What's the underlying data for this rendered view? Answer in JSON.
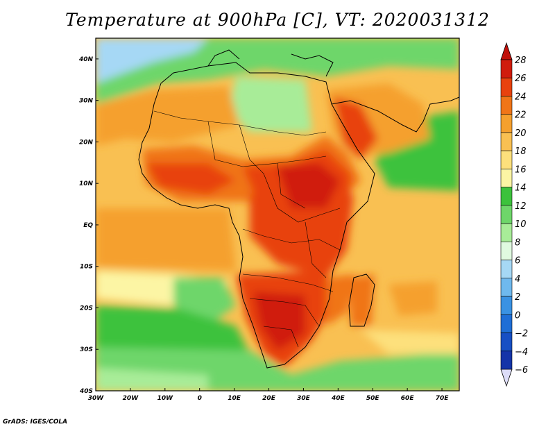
{
  "title": "Temperature at 900hPa [C], VT: 2020031312",
  "credit": "GrADS: IGES/COLA",
  "map": {
    "type": "filled-contour",
    "region": {
      "lon_range": [
        -30,
        75
      ],
      "lat_range": [
        -40,
        45
      ]
    },
    "lat_ticks": [
      {
        "value": 40,
        "label": "40N"
      },
      {
        "value": 30,
        "label": "30N"
      },
      {
        "value": 20,
        "label": "20N"
      },
      {
        "value": 10,
        "label": "10N"
      },
      {
        "value": 0,
        "label": "EQ"
      },
      {
        "value": -10,
        "label": "10S"
      },
      {
        "value": -20,
        "label": "20S"
      },
      {
        "value": -30,
        "label": "30S"
      },
      {
        "value": -40,
        "label": "40S"
      }
    ],
    "lon_ticks": [
      {
        "value": -30,
        "label": "30W"
      },
      {
        "value": -20,
        "label": "20W"
      },
      {
        "value": -10,
        "label": "10W"
      },
      {
        "value": 0,
        "label": "0"
      },
      {
        "value": 10,
        "label": "10E"
      },
      {
        "value": 20,
        "label": "20E"
      },
      {
        "value": 30,
        "label": "30E"
      },
      {
        "value": 40,
        "label": "40E"
      },
      {
        "value": 50,
        "label": "50E"
      },
      {
        "value": 60,
        "label": "60E"
      },
      {
        "value": 70,
        "label": "70E"
      }
    ]
  },
  "colorbar": {
    "levels": [
      {
        "label": "28",
        "color": "#d01c0c"
      },
      {
        "label": "26",
        "color": "#e8420e"
      },
      {
        "label": "24",
        "color": "#f07518"
      },
      {
        "label": "22",
        "color": "#f5a02e"
      },
      {
        "label": "20",
        "color": "#f9c052"
      },
      {
        "label": "18",
        "color": "#fde07c"
      },
      {
        "label": "16",
        "color": "#fcf5a4"
      },
      {
        "label": "14",
        "color": "#3cc23c"
      },
      {
        "label": "12",
        "color": "#6ed66a"
      },
      {
        "label": "10",
        "color": "#a8ec98"
      },
      {
        "label": "8",
        "color": "#e0fae0"
      },
      {
        "label": "6",
        "color": "#a6d8f5"
      },
      {
        "label": "4",
        "color": "#6fb9ee"
      },
      {
        "label": "2",
        "color": "#3a92e3"
      },
      {
        "label": "0",
        "color": "#1f6ed6"
      },
      {
        "label": "−2",
        "color": "#174fc4"
      },
      {
        "label": "−4",
        "color": "#1434a8"
      },
      {
        "label": "−6",
        "color": "#0c1f7a"
      }
    ],
    "over_color": "#c0100a",
    "under_color": "#dcdcf8"
  }
}
